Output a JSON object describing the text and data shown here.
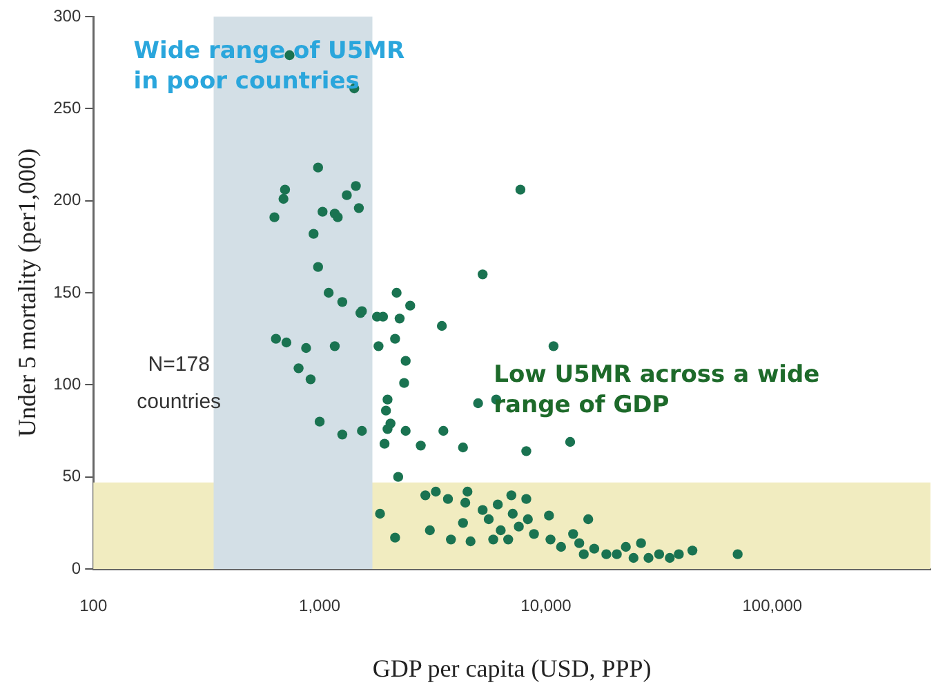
{
  "chart_data": {
    "type": "scatter",
    "xlabel": "GDP per capita (USD, PPP)",
    "ylabel": "Under 5 mortality (per1,000)",
    "log": "x",
    "grid": false,
    "legend": false,
    "marker": "circle",
    "xlim": [
      100,
      500000
    ],
    "xticks": [
      {
        "value": 100,
        "label": "100"
      },
      {
        "value": 1000,
        "label": "1,000"
      },
      {
        "value": 10000,
        "label": "10,000"
      },
      {
        "value": 100000,
        "label": "100,000"
      }
    ],
    "ylim": [
      0,
      300
    ],
    "yticks": [
      0,
      50,
      100,
      150,
      200,
      250,
      300
    ],
    "bands": [
      {
        "axis": "x",
        "from": 340,
        "to": 1710,
        "label": "Wide range of U5MR\nin poor countries",
        "color": "#d3dfe6"
      },
      {
        "axis": "y",
        "from": 0,
        "to": 47,
        "label": "Low U5MR across a wide\nrange of GDP",
        "color": "#f1ecc0"
      }
    ],
    "annotations": [
      "N=178\ncountries"
    ],
    "series": [
      {
        "color": "#1a7351",
        "x": [
          984,
          703,
          692,
          631,
          1318,
          1445,
          1490,
          1030,
          1166,
          1202,
          940,
          984,
          5250,
          1096,
          1259,
          1514,
          1537,
          1792,
          1905,
          2188,
          2256,
          2512,
          3467,
          641,
          713,
          871,
          1166,
          1820,
          2154,
          807,
          912,
          2399,
          2362,
          1995,
          1963,
          1000,
          1259,
          1537,
          2056,
          2399,
          1935,
          2797,
          3521,
          4299,
          5012,
          6026,
          7709,
          10800,
          1995,
          8185,
          12790,
          2223,
          1848,
          2154,
          3069,
          2931,
          3260,
          3689,
          3802,
          4299,
          4500,
          4400,
          4642,
          5250,
          5585,
          6124,
          6310,
          7031,
          7129,
          7586,
          8185,
          8318,
          8851,
          6808,
          5848,
          10310,
          10470,
          11660,
          13180,
          14030,
          15370,
          14690,
          16340,
          18480,
          20560,
          22540,
          24370,
          26300,
          28380,
          31620,
          35240,
          38640,
          44360,
          70310,
          736,
          1422
        ],
        "values": [
          218,
          206,
          201,
          191,
          203,
          208,
          196,
          194,
          193,
          191,
          182,
          164,
          160,
          150,
          145,
          139,
          140,
          137,
          137,
          150,
          136,
          143,
          132,
          125,
          123,
          120,
          121,
          121,
          125,
          109,
          103,
          113,
          101,
          92,
          86,
          80,
          73,
          75,
          79,
          75,
          68,
          67,
          75,
          66,
          90,
          92,
          206,
          121,
          76,
          64,
          69,
          50,
          30,
          17,
          21,
          40,
          42,
          38,
          16,
          25,
          42,
          36,
          15,
          32,
          27,
          35,
          21,
          40,
          30,
          23,
          38,
          27,
          19,
          16,
          16,
          29,
          16,
          12,
          19,
          14,
          27,
          8,
          11,
          8,
          8,
          12,
          6,
          14,
          6,
          8,
          6,
          8,
          10,
          8,
          279,
          261
        ]
      }
    ]
  }
}
